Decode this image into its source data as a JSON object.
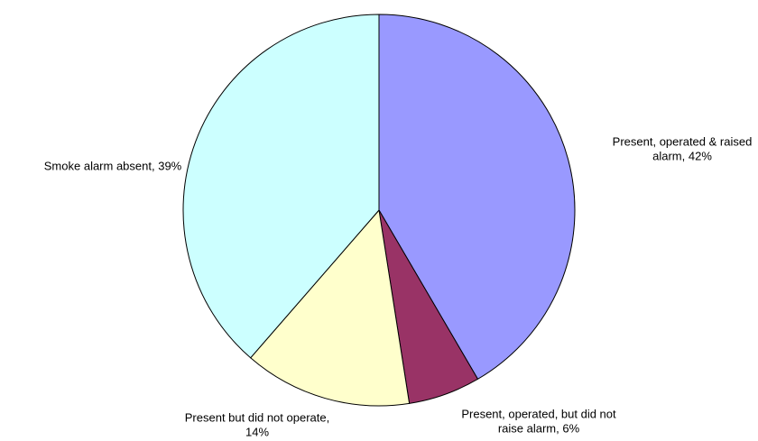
{
  "chart_data": {
    "type": "pie",
    "values": [
      42,
      6,
      14,
      39
    ],
    "value_labels": [
      [
        "Present, operated & raised",
        "alarm, 42%"
      ],
      [
        "Present, operated, but did not",
        "raise alarm, 6%"
      ],
      [
        "Present but did not operate,",
        "14%"
      ],
      [
        "Smoke alarm absent, 39%"
      ]
    ],
    "colors": [
      "#9999ff",
      "#993366",
      "#ffffcc",
      "#ccffff"
    ]
  }
}
